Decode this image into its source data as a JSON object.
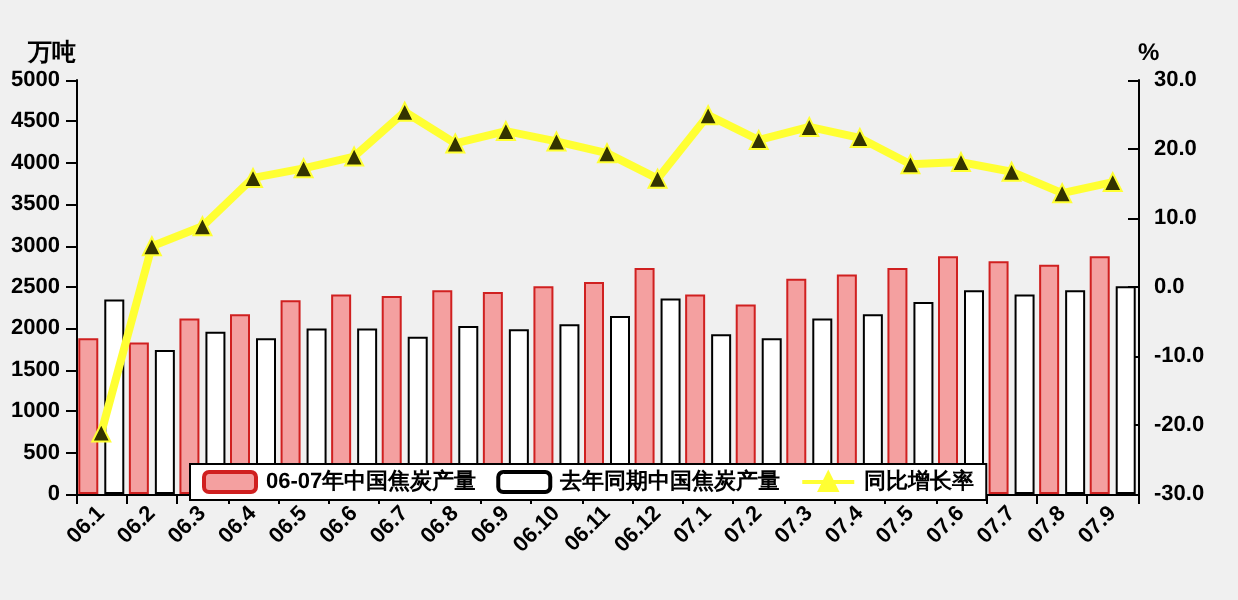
{
  "chart_data": {
    "type": "bar",
    "ylabel": "万吨",
    "y2label": "%",
    "categories": [
      "06.1",
      "06.2",
      "06.3",
      "06.4",
      "06.5",
      "06.6",
      "06.7",
      "06.8",
      "06.9",
      "06.10",
      "06.11",
      "06.12",
      "07.1",
      "07.2",
      "07.3",
      "07.4",
      "07.5",
      "07.6",
      "07.7",
      "07.8",
      "07.9"
    ],
    "series": [
      {
        "name": "06-07年中国焦炭产量",
        "color": "#f4a0a0",
        "values": [
          1880,
          1830,
          2120,
          2170,
          2340,
          2410,
          2390,
          2460,
          2440,
          2510,
          2560,
          2730,
          2410,
          2290,
          2600,
          2650,
          2730,
          2870,
          2810,
          2770,
          2870
        ]
      },
      {
        "name": "去年同期中国焦炭产量",
        "color": "#ffffff",
        "values": [
          2350,
          1740,
          1960,
          1880,
          2000,
          2000,
          1900,
          2030,
          1990,
          2050,
          2150,
          2360,
          1930,
          1880,
          2120,
          2170,
          2320,
          2460,
          2410,
          2460,
          2510
        ]
      },
      {
        "name": "同比增长率",
        "type": "line",
        "axis": "y2",
        "color": "#ffff33",
        "marker": "triangle",
        "values": [
          -21.1,
          5.9,
          8.8,
          15.8,
          17.2,
          18.9,
          25.4,
          20.8,
          22.6,
          21.1,
          19.4,
          15.7,
          24.9,
          21.3,
          23.2,
          21.6,
          17.8,
          18.1,
          16.7,
          13.6,
          15.2
        ]
      }
    ],
    "ylim": [
      0,
      5000
    ],
    "yticks": [
      0,
      500,
      1000,
      1500,
      2000,
      2500,
      3000,
      3500,
      4000,
      4500,
      5000
    ],
    "y2lim": [
      -30,
      30
    ],
    "y2ticks": [
      {
        "value": -30,
        "label": "-30.0"
      },
      {
        "value": -20,
        "label": "-20.0"
      },
      {
        "value": -10,
        "label": "-10.0"
      },
      {
        "value": 0,
        "label": "0.0"
      },
      {
        "value": 10,
        "label": "10.0"
      },
      {
        "value": 20,
        "label": "20.0"
      },
      {
        "value": 30,
        "label": "30.0"
      }
    ],
    "grid": false,
    "legend": "bottom"
  }
}
